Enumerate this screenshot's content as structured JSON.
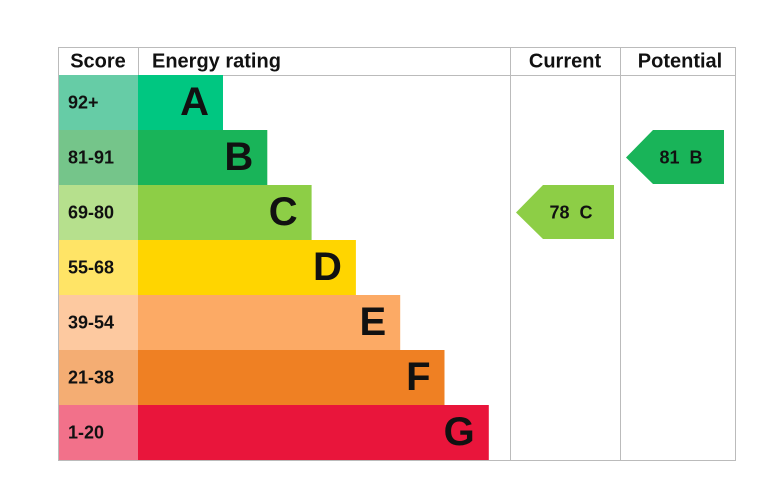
{
  "header": {
    "score": "Score",
    "rating": "Energy rating",
    "current": "Current",
    "potential": "Potential"
  },
  "bands": [
    {
      "score": "92+",
      "letter": "A",
      "color": "#00c781",
      "light": "#66cca6"
    },
    {
      "score": "81-91",
      "letter": "B",
      "color": "#19b459",
      "light": "#75c58a"
    },
    {
      "score": "69-80",
      "letter": "C",
      "color": "#8dce46",
      "light": "#b6e08d"
    },
    {
      "score": "55-68",
      "letter": "D",
      "color": "#ffd500",
      "light": "#ffe466"
    },
    {
      "score": "39-54",
      "letter": "E",
      "color": "#fcaa65",
      "light": "#fdc9a0"
    },
    {
      "score": "21-38",
      "letter": "F",
      "color": "#ef8023",
      "light": "#f4ad73"
    },
    {
      "score": "1-20",
      "letter": "G",
      "color": "#e9153b",
      "light": "#f2718a"
    }
  ],
  "current": {
    "value": 78,
    "letter": "C"
  },
  "potential": {
    "value": 81,
    "letter": "B"
  }
}
